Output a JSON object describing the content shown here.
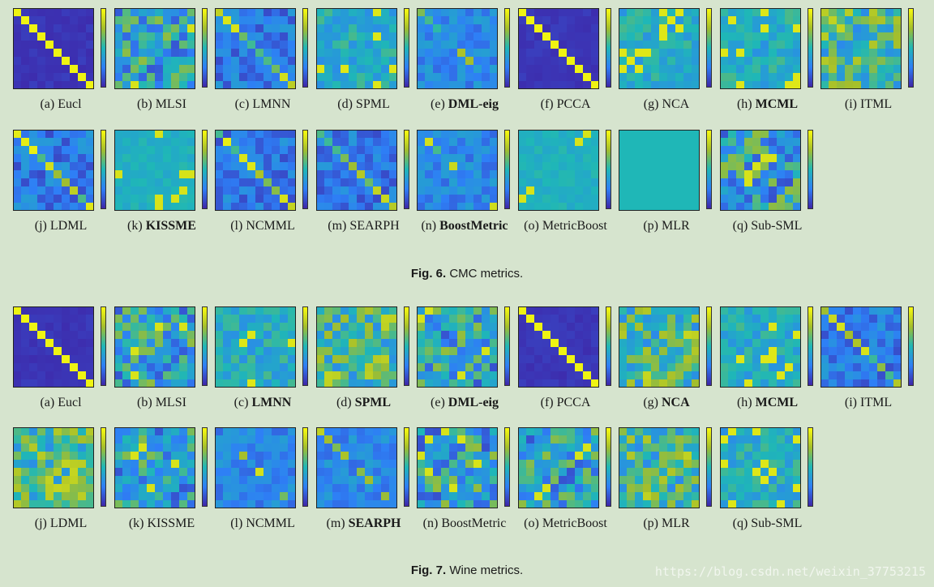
{
  "fig6": {
    "label": "Fig. 6.",
    "text": "CMC metrics.",
    "panels": [
      {
        "letter": "(a)",
        "name": "Eucl",
        "bold": false,
        "style": "diag"
      },
      {
        "letter": "(b)",
        "name": "MLSI",
        "bold": false,
        "style": "mixed"
      },
      {
        "letter": "(c)",
        "name": "LMNN",
        "bold": false,
        "style": "diagsoft"
      },
      {
        "letter": "(d)",
        "name": "SPML",
        "bold": false,
        "style": "teal"
      },
      {
        "letter": "(e)",
        "name": "DML-eig",
        "bold": true,
        "style": "blue"
      },
      {
        "letter": "(f)",
        "name": "PCCA",
        "bold": false,
        "style": "diag"
      },
      {
        "letter": "(g)",
        "name": "NCA",
        "bold": false,
        "style": "teal"
      },
      {
        "letter": "(h)",
        "name": "MCML",
        "bold": true,
        "style": "teal"
      },
      {
        "letter": "(i)",
        "name": "ITML",
        "bold": false,
        "style": "warm"
      },
      {
        "letter": "(j)",
        "name": "LDML",
        "bold": false,
        "style": "diagsoft"
      },
      {
        "letter": "(k)",
        "name": "KISSME",
        "bold": true,
        "style": "flat"
      },
      {
        "letter": "(l)",
        "name": "NCMML",
        "bold": false,
        "style": "diagsoft"
      },
      {
        "letter": "(m)",
        "name": "SEARPH",
        "bold": false,
        "style": "diagsoft"
      },
      {
        "letter": "(n)",
        "name": "BoostMetric",
        "bold": true,
        "style": "blue"
      },
      {
        "letter": "(o)",
        "name": "MetricBoost",
        "bold": false,
        "style": "flat"
      },
      {
        "letter": "(p)",
        "name": "MLR",
        "bold": false,
        "style": "uniform"
      },
      {
        "letter": "(q)",
        "name": "Sub-SML",
        "bold": false,
        "style": "mixed"
      }
    ]
  },
  "fig7": {
    "label": "Fig. 7.",
    "text": "Wine metrics.",
    "panels": [
      {
        "letter": "(a)",
        "name": "Eucl",
        "bold": false,
        "style": "diag"
      },
      {
        "letter": "(b)",
        "name": "MLSI",
        "bold": false,
        "style": "mixed"
      },
      {
        "letter": "(c)",
        "name": "LMNN",
        "bold": true,
        "style": "teal"
      },
      {
        "letter": "(d)",
        "name": "SPML",
        "bold": true,
        "style": "warm"
      },
      {
        "letter": "(e)",
        "name": "DML-eig",
        "bold": true,
        "style": "mixed"
      },
      {
        "letter": "(f)",
        "name": "PCCA",
        "bold": false,
        "style": "diag"
      },
      {
        "letter": "(g)",
        "name": "NCA",
        "bold": true,
        "style": "warm"
      },
      {
        "letter": "(h)",
        "name": "MCML",
        "bold": true,
        "style": "teal"
      },
      {
        "letter": "(i)",
        "name": "ITML",
        "bold": false,
        "style": "diagsoft"
      },
      {
        "letter": "(j)",
        "name": "LDML",
        "bold": false,
        "style": "warm"
      },
      {
        "letter": "(k)",
        "name": "KISSME",
        "bold": false,
        "style": "mixed"
      },
      {
        "letter": "(l)",
        "name": "NCMML",
        "bold": false,
        "style": "blue"
      },
      {
        "letter": "(m)",
        "name": "SEARPH",
        "bold": true,
        "style": "blue"
      },
      {
        "letter": "(n)",
        "name": "BoostMetric",
        "bold": false,
        "style": "mixed"
      },
      {
        "letter": "(o)",
        "name": "MetricBoost",
        "bold": false,
        "style": "mixed"
      },
      {
        "letter": "(p)",
        "name": "MLR",
        "bold": false,
        "style": "warm"
      },
      {
        "letter": "(q)",
        "name": "Sub-SML",
        "bold": false,
        "style": "teal"
      }
    ]
  },
  "watermark": "https://blog.csdn.net/weixin_37753215",
  "colors": {
    "background": "#d6e4ce",
    "colormap": [
      "#3e26a8",
      "#2e7ff6",
      "#1fb7b7",
      "#a4be2c",
      "#f9fb0e"
    ]
  }
}
